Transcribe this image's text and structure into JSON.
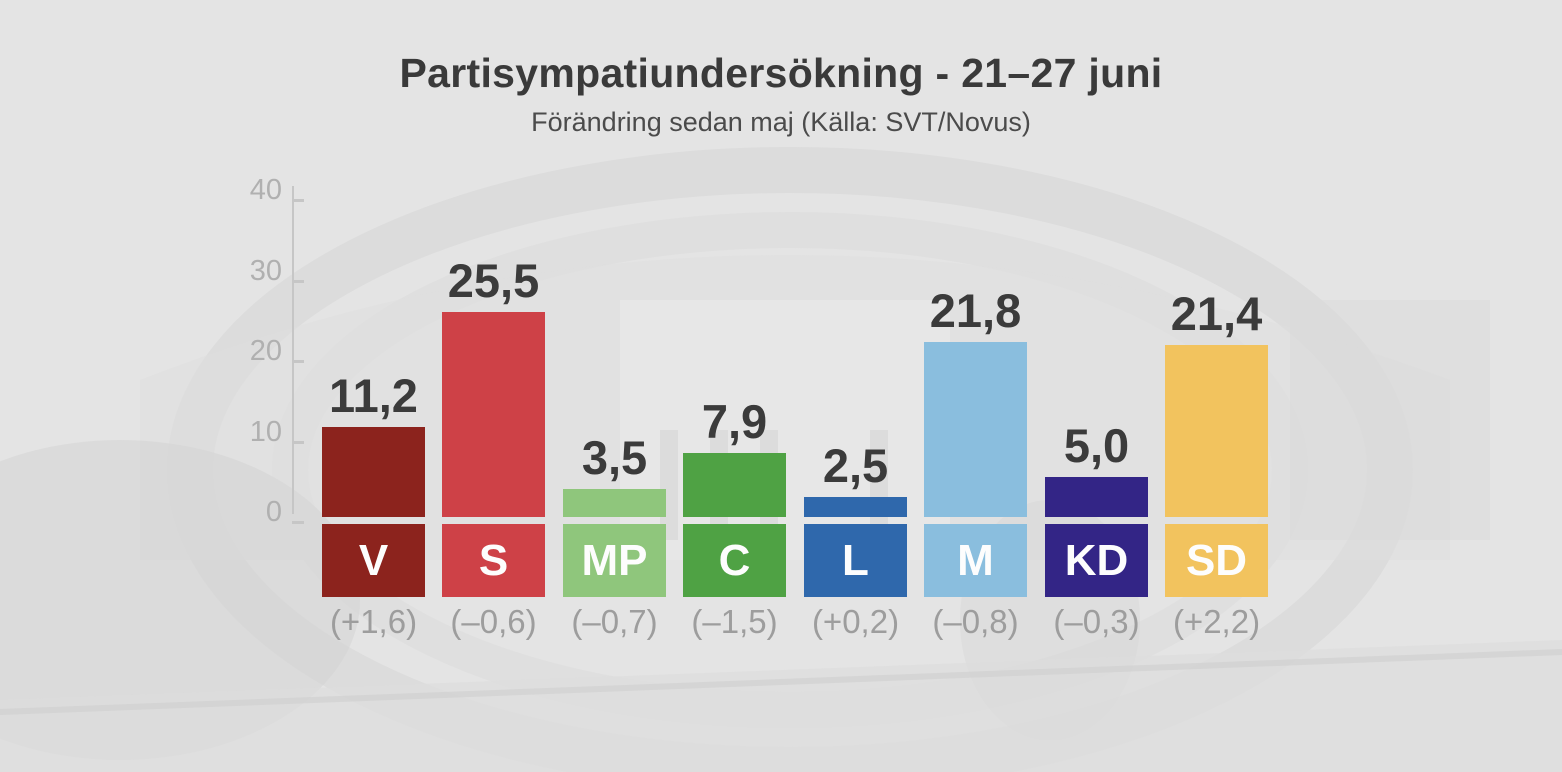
{
  "header": {
    "title": "Partisympatiundersökning - 21–27 juni",
    "subtitle": "Förändring sedan maj (Källa: SVT/Novus)"
  },
  "chart_data": {
    "type": "bar",
    "title": "Partisympatiundersökning - 21–27 juni",
    "subtitle": "Förändring sedan maj (Källa: SVT/Novus)",
    "xlabel": "",
    "ylabel": "",
    "ylim": [
      0,
      40
    ],
    "grid": false,
    "legend": false,
    "yticks": [
      40,
      30,
      20,
      10,
      0
    ],
    "ytick_labels": [
      "40",
      "30",
      "20",
      "10",
      "0"
    ],
    "categories": [
      "V",
      "S",
      "MP",
      "C",
      "L",
      "M",
      "KD",
      "SD"
    ],
    "values": [
      11.2,
      25.5,
      3.5,
      7.9,
      2.5,
      21.8,
      5.0,
      21.4
    ],
    "parties": [
      {
        "code": "V",
        "value": 11.2,
        "value_label": "11,2",
        "change": "(+1,6)",
        "color": "#8c231d"
      },
      {
        "code": "S",
        "value": 25.5,
        "value_label": "25,5",
        "change": "(–0,6)",
        "color": "#ce4147"
      },
      {
        "code": "MP",
        "value": 3.5,
        "value_label": "3,5",
        "change": "(–0,7)",
        "color": "#8fc67c"
      },
      {
        "code": "C",
        "value": 7.9,
        "value_label": "7,9",
        "change": "(–1,5)",
        "color": "#4fa244"
      },
      {
        "code": "L",
        "value": 2.5,
        "value_label": "2,5",
        "change": "(+0,2)",
        "color": "#2f68ac"
      },
      {
        "code": "M",
        "value": 21.8,
        "value_label": "21,8",
        "change": "(–0,8)",
        "color": "#8abede"
      },
      {
        "code": "KD",
        "value": 5.0,
        "value_label": "5,0",
        "change": "(–0,3)",
        "color": "#332586"
      },
      {
        "code": "SD",
        "value": 21.4,
        "value_label": "21,4",
        "change": "(+2,2)",
        "color": "#f2c35e"
      }
    ],
    "colors": {
      "title_text": "#3a3a3a",
      "subtitle_text": "#4b4b4b",
      "value_text": "#3b3b3b",
      "change_text": "#9d9d9d",
      "tick_text": "#b0b0b0",
      "axis_line": "#c6c6c6",
      "background": "#e4e4e4"
    }
  }
}
